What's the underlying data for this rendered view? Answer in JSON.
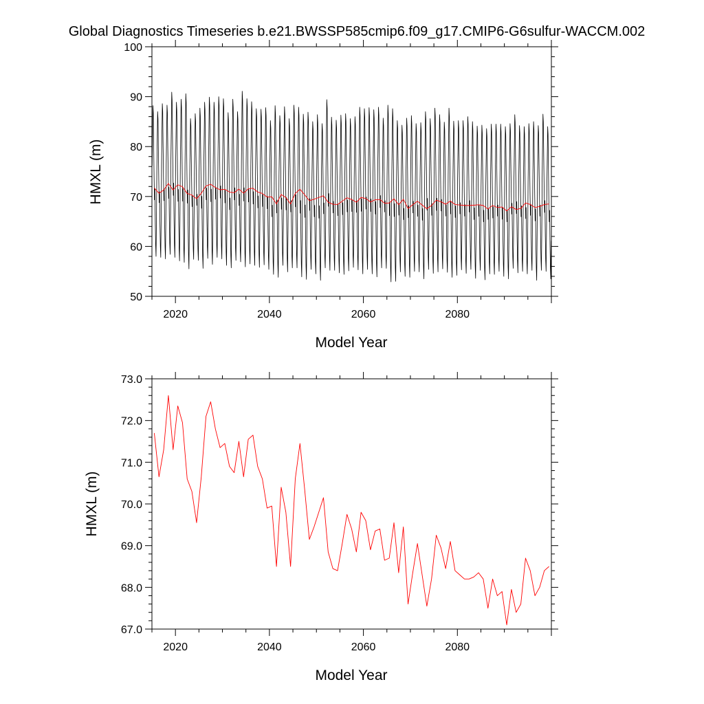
{
  "title": "Global Diagnostics Timeseries b.e21.BWSSP585cmip6.f09_g17.CMIP6-G6sulfur-WACCM.002",
  "colors": {
    "monthly": "#000000",
    "annual": "#ff0000"
  },
  "chart_data": [
    {
      "type": "line",
      "xlabel": "Model Year",
      "ylabel": "HMXL (m)",
      "xlim": [
        2015,
        2100
      ],
      "ylim": [
        50,
        100
      ],
      "x_ticks": [
        "2020",
        "2040",
        "2060",
        "2080"
      ],
      "y_ticks": [
        "50",
        "60",
        "70",
        "80",
        "90",
        "100"
      ],
      "series": [
        {
          "role": "monthly",
          "x_start": 2015,
          "x_end": 2100,
          "values_per_year": 12,
          "annual_max": [
            88.2,
            87.0,
            88.6,
            88.3,
            90.9,
            88.9,
            89.5,
            90.6,
            85.6,
            86.6,
            87.7,
            88.9,
            89.9,
            88.9,
            90.0,
            89.6,
            86.8,
            89.5,
            87.0,
            91.1,
            89.6,
            89.0,
            87.6,
            87.5,
            87.8,
            85.2,
            88.2,
            86.2,
            88.0,
            85.6,
            88.3,
            87.9,
            86.5,
            86.9,
            85.0,
            86.4,
            84.6,
            89.4,
            85.9,
            85.3,
            86.3,
            86.6,
            85.6,
            86.0,
            87.9,
            87.6,
            87.8,
            87.4,
            87.9,
            85.7,
            88.3,
            87.6,
            85.2,
            84.3,
            85.7,
            86.2,
            84.6,
            84.8,
            87.0,
            85.6,
            87.7,
            86.4,
            84.9,
            87.7,
            85.1,
            85.2,
            85.2,
            86.0,
            85.0,
            84.1,
            84.3,
            83.6,
            84.5,
            84.5,
            84.5,
            84.0,
            84.6,
            86.4,
            84.2,
            84.0,
            84.6,
            85.0,
            84.2,
            86.5,
            84.0
          ],
          "annual_min": [
            58.0,
            57.8,
            57.5,
            58.4,
            57.8,
            57.1,
            56.8,
            55.5,
            57.4,
            57.2,
            55.6,
            57.6,
            56.4,
            57.8,
            57.5,
            56.2,
            55.7,
            57.2,
            56.9,
            55.9,
            56.5,
            56.2,
            55.8,
            56.3,
            55.4,
            54.4,
            53.8,
            56.2,
            54.9,
            55.7,
            55.7,
            53.9,
            53.4,
            55.4,
            54.5,
            53.2,
            55.7,
            55.2,
            55.2,
            54.7,
            54.4,
            55.1,
            55.8,
            55.3,
            54.5,
            55.4,
            54.5,
            53.9,
            55.7,
            55.6,
            52.9,
            53.0,
            54.9,
            54.0,
            53.8,
            55.0,
            54.9,
            53.5,
            55.4,
            54.6,
            54.9,
            55.5,
            54.8,
            53.8,
            54.2,
            55.3,
            54.6,
            55.4,
            53.6,
            55.2,
            53.3,
            54.5,
            54.4,
            55.0,
            54.0,
            53.5,
            55.6,
            54.7,
            55.0,
            54.5,
            55.2,
            53.2,
            55.2,
            55.0,
            53.5
          ]
        },
        {
          "role": "annual",
          "x": [
            2015.5,
            2016.5,
            2017.5,
            2018.5,
            2019.5,
            2020.5,
            2021.5,
            2022.5,
            2023.5,
            2024.5,
            2025.5,
            2026.5,
            2027.5,
            2028.5,
            2029.5,
            2030.5,
            2031.5,
            2032.5,
            2033.5,
            2034.5,
            2035.5,
            2036.5,
            2037.5,
            2038.5,
            2039.5,
            2040.5,
            2041.5,
            2042.5,
            2043.5,
            2044.5,
            2045.5,
            2046.5,
            2047.5,
            2048.5,
            2049.5,
            2050.5,
            2051.5,
            2052.5,
            2053.5,
            2054.5,
            2055.5,
            2056.5,
            2057.5,
            2058.5,
            2059.5,
            2060.5,
            2061.5,
            2062.5,
            2063.5,
            2064.5,
            2065.5,
            2066.5,
            2067.5,
            2068.5,
            2069.5,
            2070.5,
            2071.5,
            2072.5,
            2073.5,
            2074.5,
            2075.5,
            2076.5,
            2077.5,
            2078.5,
            2079.5,
            2080.5,
            2081.5,
            2082.5,
            2083.5,
            2084.5,
            2085.5,
            2086.5,
            2087.5,
            2088.5,
            2089.5,
            2090.5,
            2091.5,
            2092.5,
            2093.5,
            2094.5,
            2095.5,
            2096.5,
            2097.5,
            2098.5,
            2099.5
          ],
          "values": [
            71.7,
            70.65,
            71.3,
            72.6,
            71.3,
            72.35,
            71.95,
            70.6,
            70.3,
            69.55,
            70.65,
            72.1,
            72.45,
            71.8,
            71.35,
            71.45,
            70.9,
            70.75,
            71.5,
            70.65,
            71.55,
            71.65,
            70.9,
            70.6,
            69.9,
            69.95,
            68.5,
            70.4,
            69.8,
            68.5,
            70.6,
            71.45,
            70.35,
            69.15,
            69.45,
            69.8,
            70.15,
            68.85,
            68.45,
            68.4,
            69.05,
            69.75,
            69.4,
            68.85,
            69.8,
            69.6,
            68.9,
            69.35,
            69.4,
            68.65,
            68.7,
            69.55,
            68.35,
            69.45,
            67.6,
            68.35,
            69.05,
            68.3,
            67.55,
            68.2,
            69.25,
            68.95,
            68.45,
            69.1,
            68.4,
            68.3,
            68.2,
            68.2,
            68.25,
            68.35,
            68.2,
            67.5,
            68.2,
            67.8,
            67.9,
            67.1,
            67.95,
            67.4,
            67.6,
            68.7,
            68.4,
            67.8,
            68.0,
            68.4,
            68.5
          ]
        }
      ]
    },
    {
      "type": "line",
      "xlabel": "Model Year",
      "ylabel": "HMXL (m)",
      "xlim": [
        2015,
        2100
      ],
      "ylim": [
        67,
        73
      ],
      "x_ticks": [
        "2020",
        "2040",
        "2060",
        "2080"
      ],
      "y_ticks": [
        "67.0",
        "68.0",
        "69.0",
        "70.0",
        "71.0",
        "72.0",
        "73.0"
      ],
      "series": [
        {
          "role": "annual",
          "x": [
            2015.5,
            2016.5,
            2017.5,
            2018.5,
            2019.5,
            2020.5,
            2021.5,
            2022.5,
            2023.5,
            2024.5,
            2025.5,
            2026.5,
            2027.5,
            2028.5,
            2029.5,
            2030.5,
            2031.5,
            2032.5,
            2033.5,
            2034.5,
            2035.5,
            2036.5,
            2037.5,
            2038.5,
            2039.5,
            2040.5,
            2041.5,
            2042.5,
            2043.5,
            2044.5,
            2045.5,
            2046.5,
            2047.5,
            2048.5,
            2049.5,
            2050.5,
            2051.5,
            2052.5,
            2053.5,
            2054.5,
            2055.5,
            2056.5,
            2057.5,
            2058.5,
            2059.5,
            2060.5,
            2061.5,
            2062.5,
            2063.5,
            2064.5,
            2065.5,
            2066.5,
            2067.5,
            2068.5,
            2069.5,
            2070.5,
            2071.5,
            2072.5,
            2073.5,
            2074.5,
            2075.5,
            2076.5,
            2077.5,
            2078.5,
            2079.5,
            2080.5,
            2081.5,
            2082.5,
            2083.5,
            2084.5,
            2085.5,
            2086.5,
            2087.5,
            2088.5,
            2089.5,
            2090.5,
            2091.5,
            2092.5,
            2093.5,
            2094.5,
            2095.5,
            2096.5,
            2097.5,
            2098.5,
            2099.5
          ],
          "values": [
            71.7,
            70.65,
            71.3,
            72.6,
            71.3,
            72.35,
            71.95,
            70.6,
            70.3,
            69.55,
            70.65,
            72.1,
            72.45,
            71.8,
            71.35,
            71.45,
            70.9,
            70.75,
            71.5,
            70.65,
            71.55,
            71.65,
            70.9,
            70.6,
            69.9,
            69.95,
            68.5,
            70.4,
            69.8,
            68.5,
            70.6,
            71.45,
            70.35,
            69.15,
            69.45,
            69.8,
            70.15,
            68.85,
            68.45,
            68.4,
            69.05,
            69.75,
            69.4,
            68.85,
            69.8,
            69.6,
            68.9,
            69.35,
            69.4,
            68.65,
            68.7,
            69.55,
            68.35,
            69.45,
            67.6,
            68.35,
            69.05,
            68.3,
            67.55,
            68.2,
            69.25,
            68.95,
            68.45,
            69.1,
            68.4,
            68.3,
            68.2,
            68.2,
            68.25,
            68.35,
            68.2,
            67.5,
            68.2,
            67.8,
            67.9,
            67.1,
            67.95,
            67.4,
            67.6,
            68.7,
            68.4,
            67.8,
            68.0,
            68.4,
            68.5
          ]
        }
      ]
    }
  ]
}
